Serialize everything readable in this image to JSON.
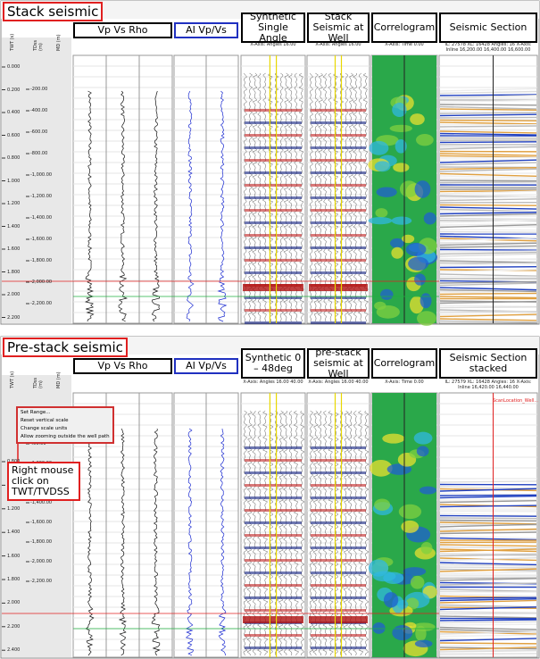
{
  "panels": [
    {
      "title": "Stack seismic",
      "axis_headers": [
        "TWT (s)",
        "TDss (m)",
        "MD (m)"
      ],
      "tracks": [
        "Vp Vs Rho",
        "AI Vp/Vs",
        "Synthetic Single Angle",
        "Stack Seismic at Well",
        "Correlogram",
        "Seismic Section"
      ],
      "track_subtitles": [
        "",
        "",
        "X-Axis: Angles 16.00",
        "X-Axis: Angles 16.00",
        "X-Axis: Time 0.00",
        "IL: 27578 XL: 16428 Angles: 16 X-Axis: Inline 16,200.00 16,400.00 16,600.00"
      ],
      "twt_ticks": [
        "0.000",
        "0.200",
        "0.400",
        "0.600",
        "0.800",
        "1.000",
        "1.200",
        "1.400",
        "1.600",
        "1.800",
        "2.000",
        "2.200"
      ],
      "depth_ticks": [
        "-200.00",
        "-400.00",
        "-600.00",
        "-800.00",
        "-1,000.00",
        "-1,200.00",
        "-1,400.00",
        "-1,600.00",
        "-1,800.00",
        "-2,000.00",
        "-2,200.00"
      ]
    },
    {
      "title": "Pre-stack seismic",
      "axis_headers": [
        "TWT (s)",
        "TDss (m)",
        "MD (m)"
      ],
      "tracks": [
        "Vp Vs Rho",
        "AI Vp/Vs",
        "Synthetic 0 – 48deg",
        "pre-stack seismic at Well",
        "Correlogram",
        "Seismic Section stacked"
      ],
      "track_subtitles": [
        "",
        "",
        "X-Axis: Angles 16.00 40.00",
        "X-Axis: Angles 16.00 40.00",
        "X-Axis: Time 0.00",
        "IL: 27579 XL: 16428 Angles: 16 X-Axis: Inline 16,420.00 16,440.00"
      ],
      "twt_ticks": [
        "0.800",
        "1.000",
        "1.200",
        "1.400",
        "1.600",
        "1.800",
        "2.000",
        "2.200",
        "2.400"
      ],
      "depth_ticks": [
        "400.00",
        "-1,000.00",
        "-1,200.00",
        "-1,400.00",
        "-1,600.00",
        "-1,800.00",
        "-2,000.00",
        "-2,200.00"
      ],
      "context_menu": [
        "Set Range...",
        "Reset vertical scale",
        "Change scale units",
        "Allow zooming outside the well path"
      ],
      "callout": "Right mouse click on TWT/TVDSS",
      "well_label": "ScanLocation_Well..."
    }
  ]
}
